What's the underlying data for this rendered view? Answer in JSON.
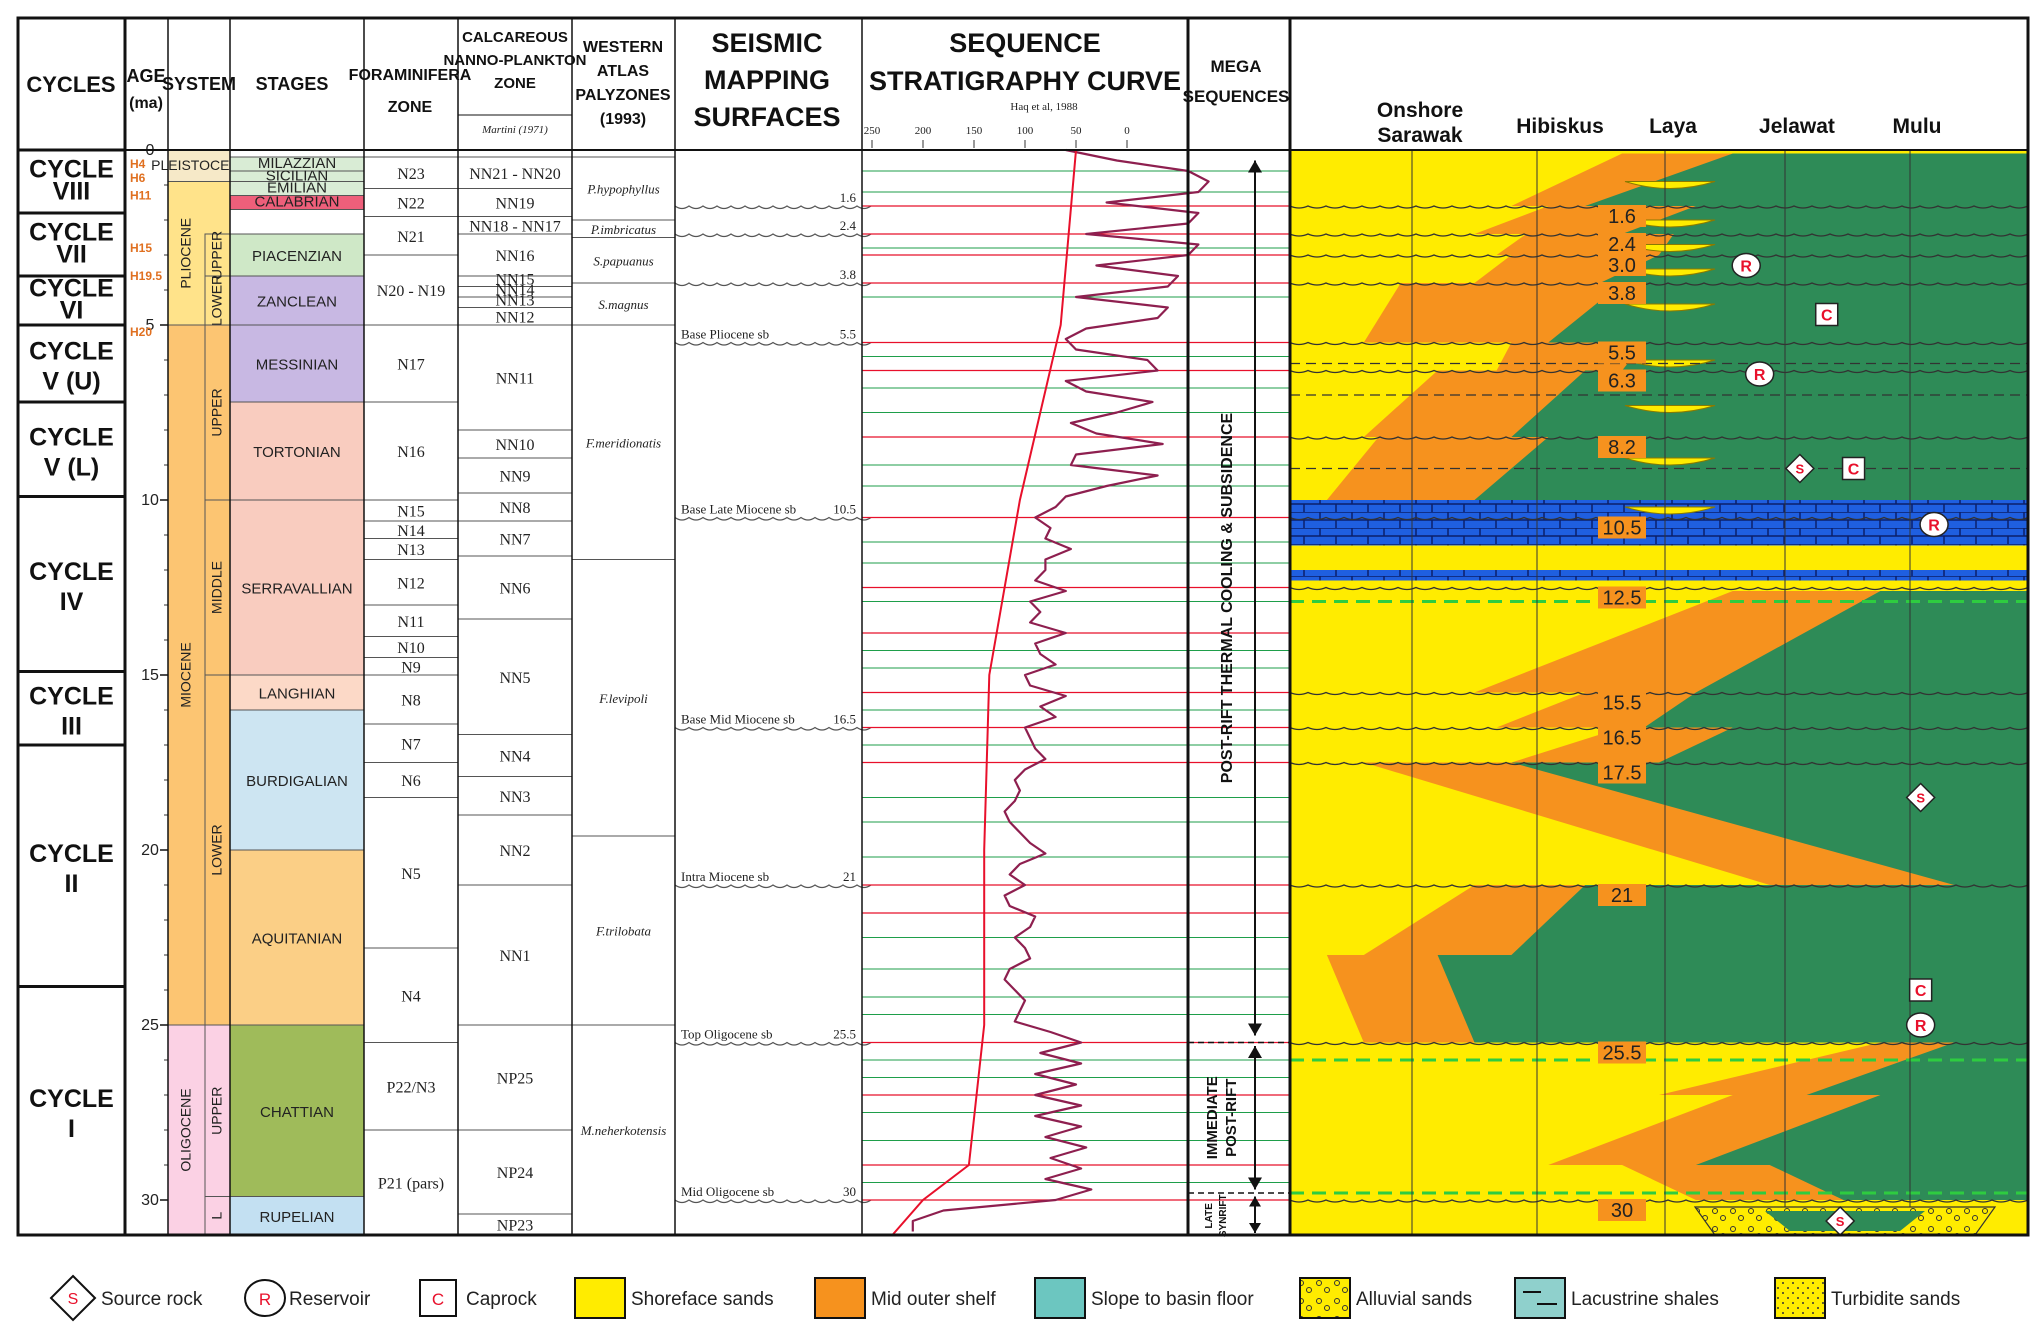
{
  "headers": {
    "cycles": "CYCLES",
    "age_1": "AGE",
    "age_2": "(ma)",
    "system": "SYSTEM",
    "stages": "STAGES",
    "foram_1": "FORAMINIFERA",
    "foram_2": "ZONE",
    "nanno_1": "CALCAREOUS",
    "nanno_2": "NANNO-PLANKTON",
    "nanno_3": "ZONE",
    "nanno_sub": "Martini (1971)",
    "paly_1": "WESTERN",
    "paly_2": "ATLAS",
    "paly_3": "PALYZONES",
    "paly_4": "(1993)",
    "seis_1": "SEISMIC",
    "seis_2": "MAPPING",
    "seis_3": "SURFACES",
    "seq_1": "SEQUENCE",
    "seq_2": "STRATIGRAPHY CURVE",
    "seq_sub": "Haq et al, 1988",
    "mega_1": "MEGA",
    "mega_2": "SEQUENCES"
  },
  "seq_ticks": [
    "250",
    "200",
    "150",
    "100",
    "50",
    "0"
  ],
  "areas": [
    {
      "l1": "Onshore",
      "l2": "Sarawak"
    },
    {
      "l1": "Hibiskus",
      "l2": ""
    },
    {
      "l1": "Laya",
      "l2": ""
    },
    {
      "l1": "Jelawat",
      "l2": ""
    },
    {
      "l1": "Mulu",
      "l2": ""
    }
  ],
  "age_ticks": [
    {
      "ma": 0,
      "label": "0"
    },
    {
      "ma": 5,
      "label": "5"
    },
    {
      "ma": 10,
      "label": "10"
    },
    {
      "ma": 15,
      "label": "15"
    },
    {
      "ma": 20,
      "label": "20"
    },
    {
      "ma": 25,
      "label": "25"
    },
    {
      "ma": 30,
      "label": "30"
    }
  ],
  "h_labels": [
    {
      "ma": 0.4,
      "label": "H4"
    },
    {
      "ma": 0.8,
      "label": "H6"
    },
    {
      "ma": 1.3,
      "label": "H11"
    },
    {
      "ma": 2.8,
      "label": "H15"
    },
    {
      "ma": 3.6,
      "label": "H19.5"
    },
    {
      "ma": 5.2,
      "label": "H20"
    }
  ],
  "cycles": [
    {
      "top": 0.0,
      "bot": 1.8,
      "l1": "CYCLE",
      "l2": "VIII"
    },
    {
      "top": 1.8,
      "bot": 3.6,
      "l1": "CYCLE",
      "l2": "VII"
    },
    {
      "top": 3.6,
      "bot": 5.0,
      "l1": "CYCLE",
      "l2": "VI"
    },
    {
      "top": 5.0,
      "bot": 7.2,
      "l1": "CYCLE",
      "l2": "V (U)"
    },
    {
      "top": 7.2,
      "bot": 9.9,
      "l1": "CYCLE",
      "l2": "V (L)"
    },
    {
      "top": 9.9,
      "bot": 14.9,
      "l1": "CYCLE",
      "l2": "IV"
    },
    {
      "top": 14.9,
      "bot": 17.0,
      "l1": "CYCLE",
      "l2": "III"
    },
    {
      "top": 17.0,
      "bot": 23.9,
      "l1": "CYCLE",
      "l2": "II"
    },
    {
      "top": 23.9,
      "bot": 31.0,
      "l1": "CYCLE",
      "l2": "I"
    }
  ],
  "systems": [
    {
      "top": 0.0,
      "bot": 0.9,
      "label": "PLEISTOCENE",
      "color": "#f6e9c8",
      "rot": false
    },
    {
      "top": 0.9,
      "bot": 5.0,
      "label": "PLIOCENE",
      "color": "#ffe38a",
      "rot": true
    },
    {
      "top": 5.0,
      "bot": 25.0,
      "label": "MIOCENE",
      "color": "#fcc572",
      "rot": true
    },
    {
      "top": 25.0,
      "bot": 31.0,
      "label": "OLIGOCENE",
      "color": "#fbd1e4",
      "rot": true
    }
  ],
  "subsystems": [
    {
      "top": 2.4,
      "bot": 3.6,
      "label": "UPPER"
    },
    {
      "top": 3.6,
      "bot": 5.0,
      "label": "LOWER"
    },
    {
      "top": 5.0,
      "bot": 10.0,
      "label": "UPPER"
    },
    {
      "top": 10.0,
      "bot": 15.0,
      "label": "MIDDLE"
    },
    {
      "top": 15.0,
      "bot": 25.0,
      "label": "LOWER"
    },
    {
      "top": 25.0,
      "bot": 29.9,
      "label": "UPPER"
    },
    {
      "top": 29.9,
      "bot": 31.0,
      "label": "L"
    }
  ],
  "stages": [
    {
      "top": 0.2,
      "bot": 0.6,
      "label": "MILAZZIAN",
      "color": "#d9ecd5"
    },
    {
      "top": 0.6,
      "bot": 0.9,
      "label": "SICILIAN",
      "color": "#d9ecd5"
    },
    {
      "top": 0.9,
      "bot": 1.3,
      "label": "EMILIAN",
      "color": "#d9ecd5"
    },
    {
      "top": 1.3,
      "bot": 1.7,
      "label": "CALABRIAN",
      "color": "#ee5f7a"
    },
    {
      "top": 1.7,
      "bot": 2.4,
      "label": "",
      "color": "#ffffff"
    },
    {
      "top": 2.4,
      "bot": 3.6,
      "label": "PIACENZIAN",
      "color": "#cfe8c7"
    },
    {
      "top": 3.6,
      "bot": 5.0,
      "label": "ZANCLEAN",
      "color": "#c8b8e3"
    },
    {
      "top": 5.0,
      "bot": 7.2,
      "label": "MESSINIAN",
      "color": "#c8b8e3"
    },
    {
      "top": 7.2,
      "bot": 10.0,
      "label": "TORTONIAN",
      "color": "#f9ccbf"
    },
    {
      "top": 10.0,
      "bot": 15.0,
      "label": "SERRAVALLIAN",
      "color": "#f9ccbf"
    },
    {
      "top": 15.0,
      "bot": 16.0,
      "label": "LANGHIAN",
      "color": "#fcd9c7"
    },
    {
      "top": 16.0,
      "bot": 20.0,
      "label": "BURDIGALIAN",
      "color": "#cde5f2"
    },
    {
      "top": 20.0,
      "bot": 25.0,
      "label": "AQUITANIAN",
      "color": "#fbcf86"
    },
    {
      "top": 25.0,
      "bot": 29.9,
      "label": "CHATTIAN",
      "color": "#9fbb5a"
    },
    {
      "top": 29.9,
      "bot": 31.0,
      "label": "RUPELIAN",
      "color": "#c3e0f2"
    }
  ],
  "forams": [
    {
      "top": 0.2,
      "bot": 1.1,
      "label": "N23"
    },
    {
      "top": 1.1,
      "bot": 1.9,
      "label": "N22"
    },
    {
      "top": 1.9,
      "bot": 3.0,
      "label": "N21"
    },
    {
      "top": 3.0,
      "bot": 5.0,
      "label": "N20 - N19"
    },
    {
      "top": 5.0,
      "bot": 7.2,
      "label": "N17"
    },
    {
      "top": 7.2,
      "bot": 10.0,
      "label": "N16"
    },
    {
      "top": 10.0,
      "bot": 10.6,
      "label": "N15"
    },
    {
      "top": 10.6,
      "bot": 11.1,
      "label": "N14"
    },
    {
      "top": 11.1,
      "bot": 11.7,
      "label": "N13"
    },
    {
      "top": 11.7,
      "bot": 13.0,
      "label": "N12"
    },
    {
      "top": 13.0,
      "bot": 13.9,
      "label": "N11"
    },
    {
      "top": 13.9,
      "bot": 14.5,
      "label": "N10"
    },
    {
      "top": 14.5,
      "bot": 15.0,
      "label": "N9"
    },
    {
      "top": 15.0,
      "bot": 16.4,
      "label": "N8"
    },
    {
      "top": 16.4,
      "bot": 17.5,
      "label": "N7"
    },
    {
      "top": 17.5,
      "bot": 18.5,
      "label": "N6"
    },
    {
      "top": 18.5,
      "bot": 22.8,
      "label": "N5"
    },
    {
      "top": 22.8,
      "bot": 25.5,
      "label": "N4"
    },
    {
      "top": 25.5,
      "bot": 28.0,
      "label": "P22/N3"
    },
    {
      "top": 28.0,
      "bot": 31.0,
      "label": "P21 (pars)"
    }
  ],
  "nannos": [
    {
      "top": 0.2,
      "bot": 1.1,
      "label": "NN21 - NN20"
    },
    {
      "top": 1.1,
      "bot": 1.9,
      "label": "NN19"
    },
    {
      "top": 1.9,
      "bot": 2.4,
      "label": "NN18 - NN17"
    },
    {
      "top": 2.4,
      "bot": 3.6,
      "label": "NN16"
    },
    {
      "top": 3.6,
      "bot": 3.9,
      "label": "NN15"
    },
    {
      "top": 3.9,
      "bot": 4.2,
      "label": "NN14"
    },
    {
      "top": 4.2,
      "bot": 4.5,
      "label": "NN13"
    },
    {
      "top": 4.5,
      "bot": 5.0,
      "label": "NN12"
    },
    {
      "top": 5.0,
      "bot": 8.0,
      "label": "NN11"
    },
    {
      "top": 8.0,
      "bot": 8.8,
      "label": "NN10"
    },
    {
      "top": 8.8,
      "bot": 9.8,
      "label": "NN9"
    },
    {
      "top": 9.8,
      "bot": 10.6,
      "label": "NN8"
    },
    {
      "top": 10.6,
      "bot": 11.6,
      "label": "NN7"
    },
    {
      "top": 11.6,
      "bot": 13.4,
      "label": "NN6"
    },
    {
      "top": 13.4,
      "bot": 16.7,
      "label": "NN5"
    },
    {
      "top": 16.7,
      "bot": 17.9,
      "label": "NN4"
    },
    {
      "top": 17.9,
      "bot": 19.0,
      "label": "NN3"
    },
    {
      "top": 19.0,
      "bot": 21.0,
      "label": "NN2"
    },
    {
      "top": 21.0,
      "bot": 25.0,
      "label": "NN1"
    },
    {
      "top": 25.0,
      "bot": 28.0,
      "label": "NP25"
    },
    {
      "top": 28.0,
      "bot": 30.4,
      "label": "NP24"
    },
    {
      "top": 30.4,
      "bot": 31.0,
      "label": "NP23"
    }
  ],
  "palys": [
    {
      "top": 0.2,
      "bot": 2.0,
      "label": "P.hypophyllus"
    },
    {
      "top": 2.0,
      "bot": 2.5,
      "label": "P.imbricatus"
    },
    {
      "top": 2.5,
      "bot": 3.8,
      "label": "S.papuanus"
    },
    {
      "top": 3.8,
      "bot": 5.0,
      "label": "S.magnus"
    },
    {
      "top": 5.0,
      "bot": 11.7,
      "label": "F.meridionatis"
    },
    {
      "top": 11.7,
      "bot": 19.6,
      "label": "F.levipoli"
    },
    {
      "top": 19.6,
      "bot": 25.0,
      "label": "F.trilobata"
    },
    {
      "top": 25.0,
      "bot": 31.0,
      "label": "M.neherkotensis"
    }
  ],
  "seis_surfaces": [
    {
      "ma": 1.6,
      "name": "",
      "age": "1.6"
    },
    {
      "ma": 2.4,
      "name": "",
      "age": "2.4"
    },
    {
      "ma": 3.8,
      "name": "",
      "age": "3.8"
    },
    {
      "ma": 5.5,
      "name": "Base Pliocene sb",
      "age": "5.5"
    },
    {
      "ma": 10.5,
      "name": "Base Late Miocene sb",
      "age": "10.5"
    },
    {
      "ma": 16.5,
      "name": "Base Mid Miocene sb",
      "age": "16.5"
    },
    {
      "ma": 21,
      "name": "Intra Miocene sb",
      "age": "21"
    },
    {
      "ma": 25.5,
      "name": "Top Oligocene sb",
      "age": "25.5"
    },
    {
      "ma": 30,
      "name": "Mid Oligocene sb",
      "age": "30"
    }
  ],
  "mega": {
    "post_rift": "POST-RIFT THERMAL COOLING & SUBSIDENCE",
    "immediate_1": "IMMEDIATE",
    "immediate_2": "POST-RIFT",
    "late_1": "LATE",
    "late_2": "SYNRIFT"
  },
  "seq_ages": [
    "1.6",
    "2.4",
    "3.0",
    "3.8",
    "5.5",
    "6.3",
    "8.2",
    "10.5",
    "12.5",
    "15.5",
    "16.5",
    "17.5",
    "21",
    "25.5",
    "30"
  ],
  "symbols": [
    {
      "type": "R",
      "text": "R",
      "ma": 3.3,
      "col": 3.9
    },
    {
      "type": "C",
      "text": "C",
      "ma": 4.7,
      "col": 4.5
    },
    {
      "type": "R",
      "text": "R",
      "ma": 6.4,
      "col": 4.0
    },
    {
      "type": "S",
      "text": "S",
      "ma": 9.1,
      "col": 4.3
    },
    {
      "type": "C",
      "text": "C",
      "ma": 9.1,
      "col": 4.7
    },
    {
      "type": "R",
      "text": "R",
      "ma": 10.7,
      "col": 5.3
    },
    {
      "type": "S",
      "text": "S",
      "ma": 18.5,
      "col": 5.2
    },
    {
      "type": "C",
      "text": "C",
      "ma": 24.0,
      "col": 5.2
    },
    {
      "type": "R",
      "text": "R",
      "ma": 25.0,
      "col": 5.2
    },
    {
      "type": "S",
      "text": "S",
      "ma": 30.6,
      "col": 4.6
    }
  ],
  "legend": [
    {
      "type": "source",
      "label": "Source rock"
    },
    {
      "type": "reservoir",
      "label": "Reservoir"
    },
    {
      "type": "caprock",
      "label": "Caprock"
    },
    {
      "type": "shoreface",
      "label": "Shoreface sands"
    },
    {
      "type": "outer",
      "label": "Mid outer shelf"
    },
    {
      "type": "slope",
      "label": "Slope to basin floor"
    },
    {
      "type": "alluvial",
      "label": "Alluvial sands"
    },
    {
      "type": "lacustrine",
      "label": "Lacustrine shales"
    },
    {
      "type": "turbidite",
      "label": "Turbidite sands"
    }
  ],
  "colors": {
    "shoreface": "#ffec00",
    "outer": "#f6921e",
    "slope": "#2e8b57",
    "limestone": "#1f5fe0",
    "curve": "#8e1f4f",
    "longterm": "#e8102b",
    "redline": "#e8102b",
    "greenline": "#1e9e4a",
    "dashgreen": "#2ecc40",
    "tag": "#f6921e"
  },
  "seq_curve_ma": [
    0,
    0.3,
    0.6,
    0.9,
    1.2,
    1.5,
    1.8,
    2.1,
    2.4,
    2.7,
    3.0,
    3.3,
    3.6,
    3.9,
    4.2,
    4.5,
    4.8,
    5.1,
    5.4,
    5.7,
    6.0,
    6.3,
    6.6,
    6.9,
    7.2,
    7.5,
    7.8,
    8.1,
    8.4,
    8.7,
    9.0,
    9.3,
    9.6,
    9.9,
    10.2,
    10.5,
    10.8,
    11.1,
    11.4,
    11.7,
    12.0,
    12.3,
    12.6,
    12.9,
    13.2,
    13.5,
    13.8,
    14.1,
    14.4,
    14.7,
    15.0,
    15.3,
    15.6,
    15.9,
    16.2,
    16.5,
    16.8,
    17.1,
    17.4,
    17.7,
    18.0,
    18.3,
    18.6,
    18.9,
    19.2,
    19.5,
    19.8,
    20.1,
    20.4,
    20.7,
    21.0,
    21.3,
    21.6,
    21.9,
    22.2,
    22.5,
    22.8,
    23.1,
    23.4,
    23.7,
    24.0,
    24.3,
    24.6,
    24.9,
    25.2,
    25.5,
    25.8,
    26.1,
    26.4,
    26.7,
    27.0,
    27.3,
    27.6,
    27.9,
    28.2,
    28.5,
    28.8,
    29.1,
    29.4,
    29.7,
    30.0,
    30.3,
    30.6,
    30.9
  ],
  "seq_curve_val": [
    60,
    10,
    -60,
    -80,
    -70,
    20,
    -70,
    -60,
    40,
    -70,
    -60,
    30,
    -50,
    -40,
    50,
    -40,
    -30,
    40,
    60,
    50,
    -20,
    -30,
    60,
    40,
    -25,
    10,
    55,
    30,
    -35,
    50,
    55,
    -30,
    20,
    60,
    70,
    90,
    75,
    80,
    55,
    80,
    80,
    90,
    60,
    95,
    85,
    95,
    60,
    90,
    85,
    70,
    100,
    95,
    60,
    85,
    70,
    100,
    95,
    90,
    80,
    100,
    110,
    105,
    110,
    120,
    115,
    105,
    95,
    80,
    105,
    115,
    100,
    120,
    115,
    90,
    95,
    110,
    100,
    95,
    115,
    120,
    110,
    100,
    105,
    110,
    75,
    45,
    85,
    45,
    90,
    50,
    90,
    45,
    90,
    45,
    80,
    40,
    75,
    45,
    80,
    35,
    70,
    180,
    210,
    210
  ],
  "seq_longterm_ma": [
    0,
    5,
    10,
    15,
    20,
    25,
    29,
    30,
    31
  ],
  "seq_longterm_val": [
    50,
    65,
    105,
    135,
    140,
    140,
    155,
    200,
    230
  ]
}
